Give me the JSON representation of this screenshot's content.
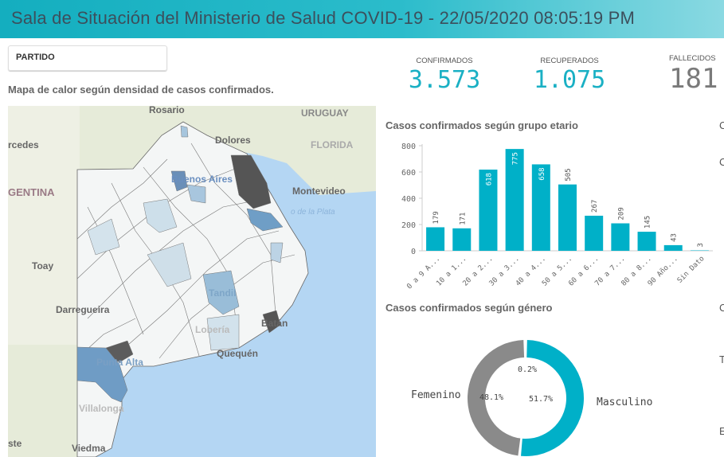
{
  "header": {
    "title": "Sala de Situación del Ministerio de Salud COVID-19 - 22/05/2020 08:05:19 PM"
  },
  "filter": {
    "label": "PARTIDO"
  },
  "map": {
    "title": "Mapa de calor según densidad de casos confirmados.",
    "labels": [
      "Rosario",
      "URUGUAY",
      "Dolores",
      "FLORIDA",
      "rcedes",
      "Buenos Aires",
      "GENTINA",
      "Montevideo",
      "o de la Plata",
      "Toay",
      "Tandil",
      "Darregueira",
      "Batán",
      "Lobería",
      "Quequén",
      "Punta Alta",
      "Villalonga",
      "ste",
      "Viedma"
    ]
  },
  "kpis": [
    {
      "label": "CONFIRMADOS",
      "value": "3.573",
      "color": "#1ab0c4"
    },
    {
      "label": "RECUPERADOS",
      "value": "1.075",
      "color": "#1ab0c4"
    },
    {
      "label": "FALLECIDOS",
      "value": "181",
      "color": "#7a7a7a"
    }
  ],
  "chart_data": [
    {
      "type": "bar",
      "title": "Casos confirmados según grupo etario",
      "categories": [
        "0 a 9 A...",
        "10 a 1...",
        "20 a 2...",
        "30 a 3...",
        "40 a 4...",
        "50 a 5...",
        "60 a 6...",
        "70 a 7...",
        "80 a 8...",
        "90 Año...",
        "Sin Dato"
      ],
      "values": [
        179,
        171,
        618,
        775,
        658,
        505,
        267,
        209,
        145,
        43,
        3
      ],
      "yticks": [
        0,
        200,
        400,
        600,
        800
      ],
      "ylim": [
        0,
        800
      ],
      "color": "#00b0c8",
      "grid": false
    },
    {
      "type": "pie",
      "title": "Casos confirmados según género",
      "donut": true,
      "slices": [
        {
          "name": "Masculino",
          "value": 51.7,
          "label": "51.7%",
          "color": "#00b0c8"
        },
        {
          "name": "Femenino",
          "value": 48.1,
          "label": "48.1%",
          "color": "#8a8a8a"
        },
        {
          "name": "",
          "value": 0.2,
          "label": "0.2%",
          "color": "#cfcfcf"
        }
      ]
    }
  ],
  "clipped": [
    "C",
    "C",
    "C",
    "T",
    "E"
  ]
}
